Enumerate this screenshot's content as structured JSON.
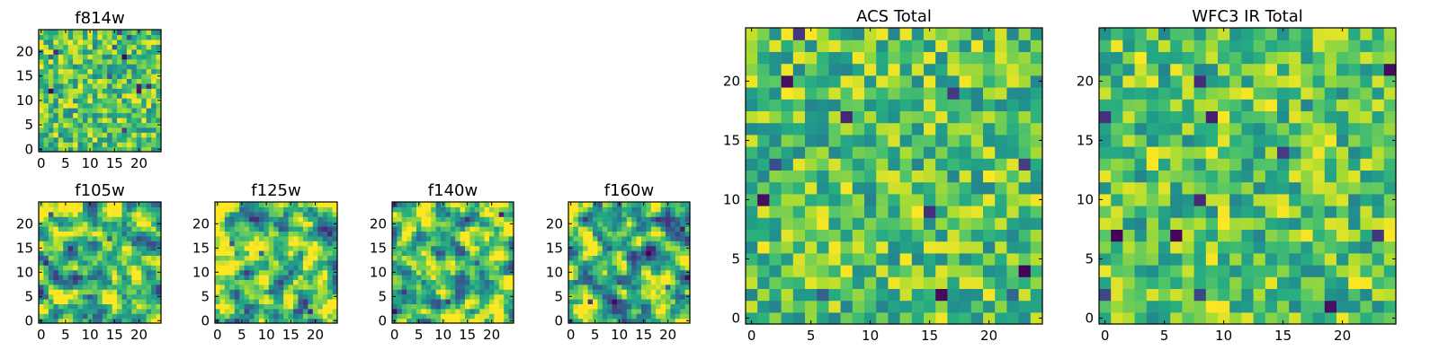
{
  "colors": {
    "colormap": "viridis",
    "frame": "#000000",
    "background": "#ffffff"
  },
  "chart_data": [
    {
      "type": "heatmap",
      "title": "f814w",
      "x_range": [
        -0.5,
        24.5
      ],
      "y_range": [
        -0.5,
        24.5
      ],
      "xticks": [
        0,
        5,
        10,
        15,
        20
      ],
      "yticks": [
        0,
        5,
        10,
        15,
        20
      ],
      "grid_size": [
        25,
        25
      ],
      "values": "random pixel noise, mostly green-yellow with sparse dark purple pixels"
    },
    {
      "type": "heatmap",
      "title": "f105w",
      "x_range": [
        -0.5,
        24.5
      ],
      "y_range": [
        -0.5,
        24.5
      ],
      "xticks": [
        0,
        5,
        10,
        15,
        20
      ],
      "yticks": [
        0,
        5,
        10,
        15,
        20
      ],
      "grid_size": [
        25,
        25
      ],
      "values": "smoothed noise, yellow-green with dark purple clump near (21,14)"
    },
    {
      "type": "heatmap",
      "title": "f125w",
      "x_range": [
        -0.5,
        24.5
      ],
      "y_range": [
        -0.5,
        24.5
      ],
      "xticks": [
        0,
        5,
        10,
        15,
        20
      ],
      "yticks": [
        0,
        5,
        10,
        15,
        20
      ],
      "grid_size": [
        25,
        25
      ],
      "values": "smoothed noise, yellow-green with dark purple pixels near right edge"
    },
    {
      "type": "heatmap",
      "title": "f140w",
      "x_range": [
        -0.5,
        24.5
      ],
      "y_range": [
        -0.5,
        24.5
      ],
      "xticks": [
        0,
        5,
        10,
        15,
        20
      ],
      "yticks": [
        0,
        5,
        10,
        15,
        20
      ],
      "grid_size": [
        25,
        25
      ],
      "values": "smoothed noise, yellow-green with dark purple clump near (9,11)"
    },
    {
      "type": "heatmap",
      "title": "f160w",
      "x_range": [
        -0.5,
        24.5
      ],
      "y_range": [
        -0.5,
        24.5
      ],
      "xticks": [
        0,
        5,
        10,
        15,
        20
      ],
      "yticks": [
        0,
        5,
        10,
        15,
        20
      ],
      "grid_size": [
        25,
        25
      ],
      "values": "smoothed noise, yellow-green with dark purple clump near (17,10)"
    },
    {
      "type": "heatmap",
      "title": "ACS Total",
      "x_range": [
        -0.5,
        24.5
      ],
      "y_range": [
        -0.5,
        24.5
      ],
      "xticks": [
        0,
        5,
        10,
        15,
        20
      ],
      "yticks": [
        0,
        5,
        10,
        15,
        20
      ],
      "grid_size": [
        25,
        25
      ],
      "values": "random pixel noise, mostly green-yellow with scattered dark purple pixels"
    },
    {
      "type": "heatmap",
      "title": "WFC3 IR Total",
      "x_range": [
        -0.5,
        24.5
      ],
      "y_range": [
        -0.5,
        24.5
      ],
      "xticks": [
        0,
        5,
        10,
        15,
        20
      ],
      "yticks": [
        0,
        5,
        10,
        15,
        20
      ],
      "grid_size": [
        25,
        25
      ],
      "values": "random pixel noise, mostly green-yellow with scattered dark purple pixels"
    }
  ]
}
